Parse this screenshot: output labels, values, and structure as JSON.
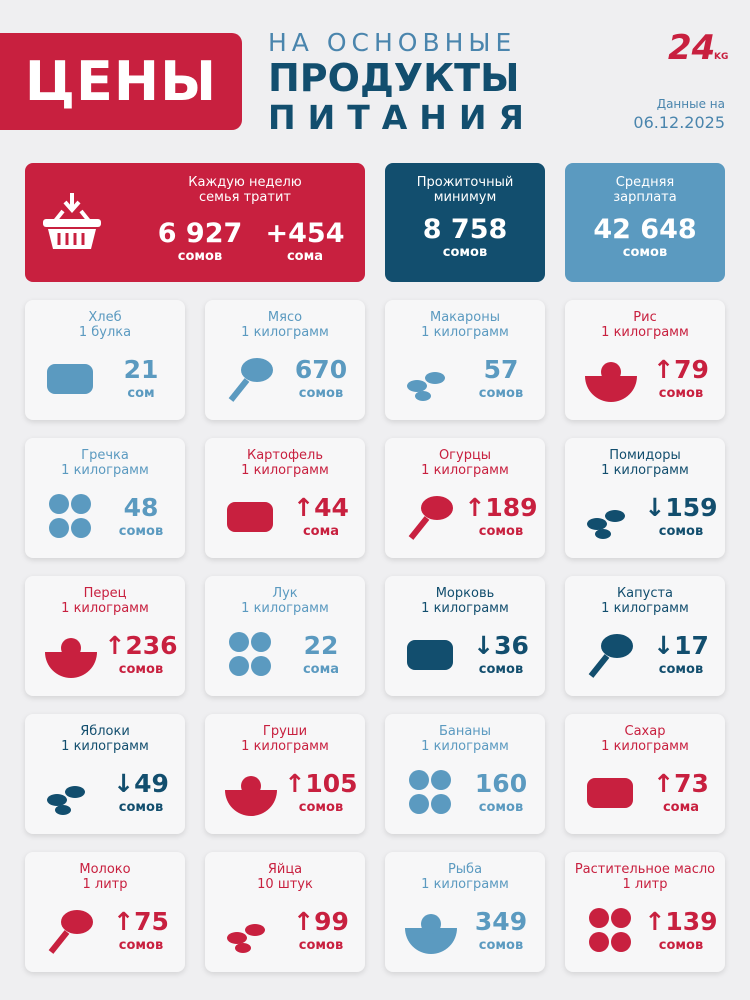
{
  "header": {
    "title": "ЦЕНЫ",
    "subtitle_line1": "НА ОСНОВНЫЕ",
    "subtitle_line2": "ПРОДУКТЫ",
    "subtitle_line3": "ПИТАНИЯ",
    "logo": "24",
    "logo_suffix": "KG",
    "date_label": "Данные на",
    "date": "06.12.2025"
  },
  "summary": {
    "weekly": {
      "label": "Каждую неделю семья тратит",
      "value": "6 927",
      "unit": "сомов",
      "change": "+454",
      "change_unit": "сома"
    },
    "minimum": {
      "label": "Прожиточный минимум",
      "value": "8 758",
      "unit": "сомов"
    },
    "salary": {
      "label": "Средняя зарплата",
      "value": "42 648",
      "unit": "сомов"
    }
  },
  "items": [
    {
      "name": "Хлеб",
      "quantity": "1 булка",
      "price": "21",
      "unit": "сом",
      "trend": "flat"
    },
    {
      "name": "Мясо",
      "quantity": "1 килограмм",
      "price": "670",
      "unit": "сомов",
      "trend": "flat"
    },
    {
      "name": "Макароны",
      "quantity": "1 килограмм",
      "price": "57",
      "unit": "сомов",
      "trend": "flat"
    },
    {
      "name": "Рис",
      "quantity": "1 килограмм",
      "price": "↑79",
      "unit": "сомов",
      "trend": "up"
    },
    {
      "name": "Гречка",
      "quantity": "1 килограмм",
      "price": "48",
      "unit": "сомов",
      "trend": "flat"
    },
    {
      "name": "Картофель",
      "quantity": "1 килограмм",
      "price": "↑44",
      "unit": "сома",
      "trend": "up"
    },
    {
      "name": "Огурцы",
      "quantity": "1 килограмм",
      "price": "↑189",
      "unit": "сомов",
      "trend": "up"
    },
    {
      "name": "Помидоры",
      "quantity": "1 килограмм",
      "price": "↓159",
      "unit": "сомов",
      "trend": "down"
    },
    {
      "name": "Перец",
      "quantity": "1 килограмм",
      "price": "↑236",
      "unit": "сомов",
      "trend": "up"
    },
    {
      "name": "Лук",
      "quantity": "1 килограмм",
      "price": "22",
      "unit": "сома",
      "trend": "flat"
    },
    {
      "name": "Морковь",
      "quantity": "1 килограмм",
      "price": "↓36",
      "unit": "сомов",
      "trend": "down"
    },
    {
      "name": "Капуста",
      "quantity": "1 килограмм",
      "price": "↓17",
      "unit": "сомов",
      "trend": "down"
    },
    {
      "name": "Яблоки",
      "quantity": "1 килограмм",
      "price": "↓49",
      "unit": "сомов",
      "trend": "down"
    },
    {
      "name": "Груши",
      "quantity": "1 килограмм",
      "price": "↑105",
      "unit": "сомов",
      "trend": "up"
    },
    {
      "name": "Бананы",
      "quantity": "1 килограмм",
      "price": "160",
      "unit": "сомов",
      "trend": "flat"
    },
    {
      "name": "Сахар",
      "quantity": "1 килограмм",
      "price": "↑73",
      "unit": "сома",
      "trend": "up"
    },
    {
      "name": "Молоко",
      "quantity": "1 литр",
      "price": "↑75",
      "unit": "сомов",
      "trend": "up"
    },
    {
      "name": "Яйца",
      "quantity": "10 штук",
      "price": "↑99",
      "unit": "сомов",
      "trend": "up"
    },
    {
      "name": "Рыба",
      "quantity": "1 килограмм",
      "price": "349",
      "unit": "сомов",
      "trend": "flat"
    },
    {
      "name": "Растительное масло",
      "quantity": "1 литр",
      "price": "↑139",
      "unit": "сомов",
      "trend": "up"
    }
  ]
}
